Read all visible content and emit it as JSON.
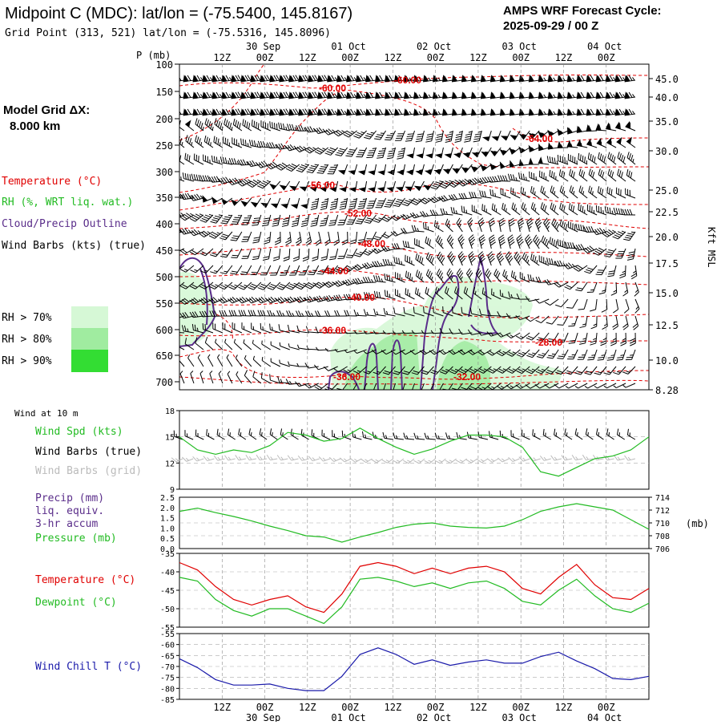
{
  "header": {
    "station_title": "Midpoint C (MDC):  lat/lon = (-75.5400, 145.8167)",
    "grid_point": "Grid Point (313, 521) lat/lon = (-75.5316, 145.8096)",
    "forecast_cycle_label": "AMPS WRF Forecast Cycle:",
    "forecast_cycle_value": "2025-09-29 / 00  Z"
  },
  "model_grid": {
    "label": "Model Grid ΔX:",
    "value": "8.000 km"
  },
  "legend_upper": {
    "temperature": "Temperature (°C)",
    "rh": "RH (%, WRT liq. wat.)",
    "cloud": "Cloud/Precip Outline",
    "wind": "Wind Barbs (kts) (true)",
    "rh_levels": [
      {
        "label": "RH > 70%",
        "color": "#d6f8d6"
      },
      {
        "label": "RH > 80%",
        "color": "#a0eca0"
      },
      {
        "label": "RH > 90%",
        "color": "#33dd33"
      }
    ]
  },
  "legend_wind10": {
    "heading": "Wind at 10 m",
    "spd": "Wind Spd (kts)",
    "barbs_true": "Wind Barbs (true)",
    "barbs_grid": "Wind Barbs (grid)"
  },
  "legend_precip": {
    "l1": "Precip (mm)",
    "l2": "liq. equiv.",
    "l3": "3-hr accum",
    "l4": "Pressure (mb)"
  },
  "legend_temp": {
    "temp": "Temperature (°C)",
    "dew": "Dewpoint (°C)"
  },
  "legend_chill": {
    "label": "Wind Chill T (°C)"
  },
  "colors": {
    "temperature": "#e00000",
    "rh_green": "#22bb22",
    "cloud": "#5a2d8a",
    "wind_chill": "#1a1aaa",
    "grid_barbs": "#bbbbbb"
  },
  "time_axis": {
    "hour_labels": [
      "12Z",
      "00Z",
      "12Z",
      "00Z",
      "12Z",
      "00Z",
      "12Z",
      "00Z",
      "12Z",
      "00Z"
    ],
    "date_labels": [
      "30 Sep",
      "01 Oct",
      "02 Oct",
      "03 Oct",
      "04 Oct"
    ]
  },
  "chart_data": [
    {
      "type": "line",
      "name": "vertical cross-section",
      "ylabel": "P (mb)",
      "pressure_ticks": [
        "100",
        "150",
        "200",
        "250",
        "300",
        "350",
        "400",
        "450",
        "500",
        "550",
        "600",
        "650",
        "700"
      ],
      "kft_ticks": [
        "45.0",
        "40.0",
        "35.0",
        "30.0",
        "25.0",
        "22.5",
        "20.0",
        "17.5",
        "15.0",
        "12.5",
        "10.0",
        "8.28"
      ],
      "kft_axis_label": "Kft MSL",
      "contour_labels": [
        "-60.00",
        "-60.00",
        "-64.00",
        "-56.00",
        "-52.00",
        "-48.00",
        "-44.00",
        "-40.00",
        "-36.00",
        "-28.00",
        "-36.00",
        "-32.00"
      ]
    },
    {
      "type": "line",
      "name": "10 m wind speed",
      "ylim": [
        9,
        18
      ],
      "y_ticks": [
        "18",
        "15",
        "12",
        "9"
      ],
      "values": [
        15.0,
        13.5,
        13.0,
        13.5,
        13.2,
        14.0,
        15.5,
        15.2,
        14.5,
        14.8,
        16.0,
        14.8,
        13.8,
        13.0,
        13.6,
        14.5,
        15.2,
        15.2,
        15.0,
        13.8,
        11.0,
        10.5,
        11.5,
        12.5,
        12.8,
        13.5,
        15.0
      ]
    },
    {
      "type": "line",
      "name": "surface pressure",
      "ylim": [
        706,
        714
      ],
      "y_ticks_left": [
        "2.5",
        "2.0",
        "1.5",
        "1.0",
        "0.5",
        "0.0"
      ],
      "y_ticks_right": [
        "714",
        "712",
        "710",
        "708",
        "706"
      ],
      "right_unit": "(mb)",
      "values": [
        711.8,
        712.3,
        711.6,
        711.0,
        710.3,
        709.5,
        708.8,
        708.0,
        707.8,
        707.0,
        707.8,
        708.5,
        709.3,
        709.8,
        710.0,
        709.5,
        709.3,
        709.2,
        709.5,
        710.5,
        711.8,
        712.5,
        713.0,
        712.5,
        712.0,
        710.5,
        709.0
      ]
    },
    {
      "type": "line",
      "name": "temperature and dewpoint",
      "ylim": [
        -55,
        -35
      ],
      "y_ticks": [
        "-35",
        "-40",
        "-45",
        "-50",
        "-55"
      ],
      "series": [
        {
          "values": [
            -37.5,
            -39.5,
            -44.0,
            -47.5,
            -49.0,
            -47.5,
            -46.5,
            -49.5,
            -51.0,
            -46.0,
            -38.5,
            -37.5,
            -38.5,
            -40.5,
            -39.0,
            -40.5,
            -39.0,
            -38.5,
            -40.0,
            -44.5,
            -46.0,
            -41.5,
            -38.0,
            -43.5,
            -47.0,
            -47.5,
            -44.5
          ]
        },
        {
          "values": [
            -41.5,
            -42.5,
            -47.5,
            -50.5,
            -52.0,
            -50.0,
            -50.0,
            -52.0,
            -54.0,
            -49.5,
            -42.0,
            -41.5,
            -42.5,
            -44.0,
            -43.0,
            -44.5,
            -43.0,
            -42.5,
            -44.5,
            -48.0,
            -49.0,
            -45.0,
            -42.0,
            -46.5,
            -50.0,
            -51.0,
            -48.5
          ]
        }
      ]
    },
    {
      "type": "line",
      "name": "wind chill",
      "ylim": [
        -85,
        -55
      ],
      "y_ticks": [
        "-55",
        "-60",
        "-65",
        "-70",
        "-75",
        "-80",
        "-85"
      ],
      "values": [
        -66.5,
        -70.5,
        -76.0,
        -78.5,
        -78.5,
        -78.0,
        -80.0,
        -81.0,
        -81.0,
        -74.5,
        -64.5,
        -61.5,
        -64.5,
        -69.0,
        -67.0,
        -69.5,
        -68.0,
        -67.0,
        -68.5,
        -68.5,
        -65.5,
        -63.5,
        -67.5,
        -71.0,
        -75.5,
        -76.0,
        -74.5
      ]
    }
  ]
}
